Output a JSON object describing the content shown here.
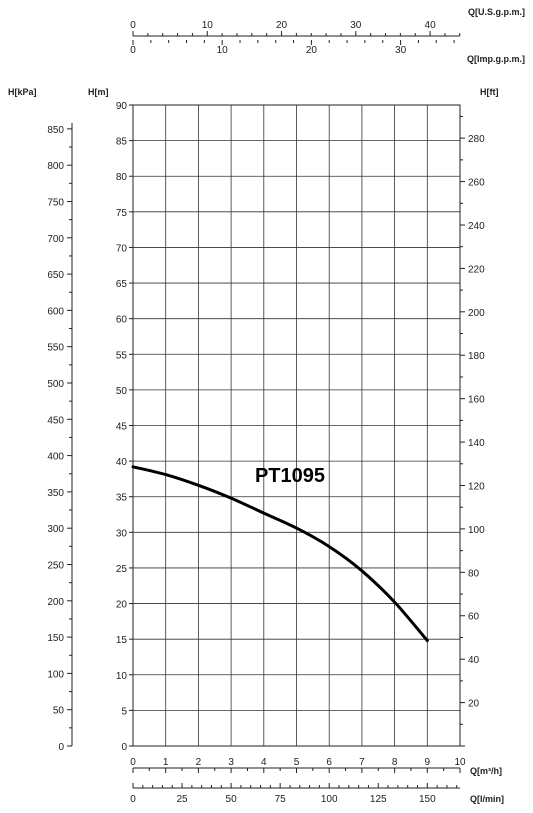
{
  "chart_data": {
    "type": "line",
    "title": "PT1095",
    "series": [
      {
        "x": [
          0,
          1,
          2,
          3,
          4,
          5,
          6,
          7,
          8,
          9
        ],
        "y": [
          39.2,
          38.1,
          36.6,
          34.8,
          32.7,
          30.6,
          28.0,
          24.6,
          20.2,
          14.8
        ]
      }
    ],
    "x_axis_primary": {
      "label": "Q[m³/h]",
      "range": [
        0,
        10
      ],
      "ticks": [
        0,
        1,
        2,
        3,
        4,
        5,
        6,
        7,
        8,
        9,
        10
      ]
    },
    "x_axis_lpm": {
      "label": "Q[l/min]",
      "ticks": [
        0,
        25,
        50,
        75,
        100,
        125,
        150
      ]
    },
    "x_axis_usgpm": {
      "label": "Q[U.S.g.p.m.]",
      "ticks": [
        0,
        10,
        20,
        30,
        40
      ]
    },
    "x_axis_impgpm": {
      "label": "Q[Imp.g.p.m.]",
      "ticks": [
        0,
        10,
        20,
        30
      ]
    },
    "y_axis_primary": {
      "label": "H[m]",
      "range": [
        0,
        90
      ],
      "ticks": [
        0,
        5,
        10,
        15,
        20,
        25,
        30,
        35,
        40,
        45,
        50,
        55,
        60,
        65,
        70,
        75,
        80,
        85,
        90
      ]
    },
    "y_axis_kpa": {
      "label": "H[kPa]",
      "ticks": [
        0,
        50,
        100,
        150,
        200,
        250,
        300,
        350,
        400,
        450,
        500,
        550,
        600,
        650,
        700,
        750,
        800,
        850
      ]
    },
    "y_axis_ft": {
      "label": "H[ft]",
      "ticks": [
        20,
        40,
        60,
        80,
        100,
        120,
        140,
        160,
        180,
        200,
        220,
        240,
        260,
        280
      ]
    },
    "grid": true
  }
}
